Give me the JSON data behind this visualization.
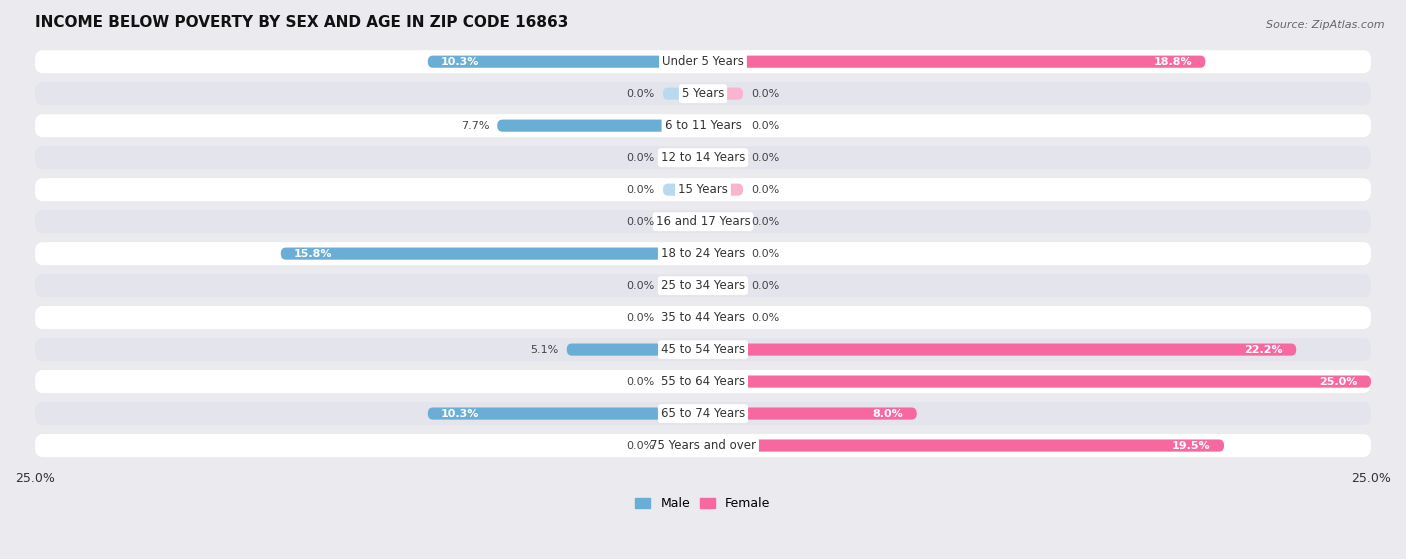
{
  "title": "INCOME BELOW POVERTY BY SEX AND AGE IN ZIP CODE 16863",
  "source": "Source: ZipAtlas.com",
  "categories": [
    "Under 5 Years",
    "5 Years",
    "6 to 11 Years",
    "12 to 14 Years",
    "15 Years",
    "16 and 17 Years",
    "18 to 24 Years",
    "25 to 34 Years",
    "35 to 44 Years",
    "45 to 54 Years",
    "55 to 64 Years",
    "65 to 74 Years",
    "75 Years and over"
  ],
  "male": [
    10.3,
    0.0,
    7.7,
    0.0,
    0.0,
    0.0,
    15.8,
    0.0,
    0.0,
    5.1,
    0.0,
    10.3,
    0.0
  ],
  "female": [
    18.8,
    0.0,
    0.0,
    0.0,
    0.0,
    0.0,
    0.0,
    0.0,
    0.0,
    22.2,
    25.0,
    8.0,
    19.5
  ],
  "male_color": "#6aaed6",
  "female_color": "#f768a1",
  "male_color_light": "#b8d9ee",
  "female_color_light": "#fbb4d0",
  "male_label": "Male",
  "female_label": "Female",
  "axis_limit": 25.0,
  "bg_color": "#eaeaef",
  "row_bg_white": "#ffffff",
  "row_bg_gray": "#e4e4ec",
  "title_fontsize": 11,
  "label_fontsize": 8.5,
  "value_fontsize": 8
}
